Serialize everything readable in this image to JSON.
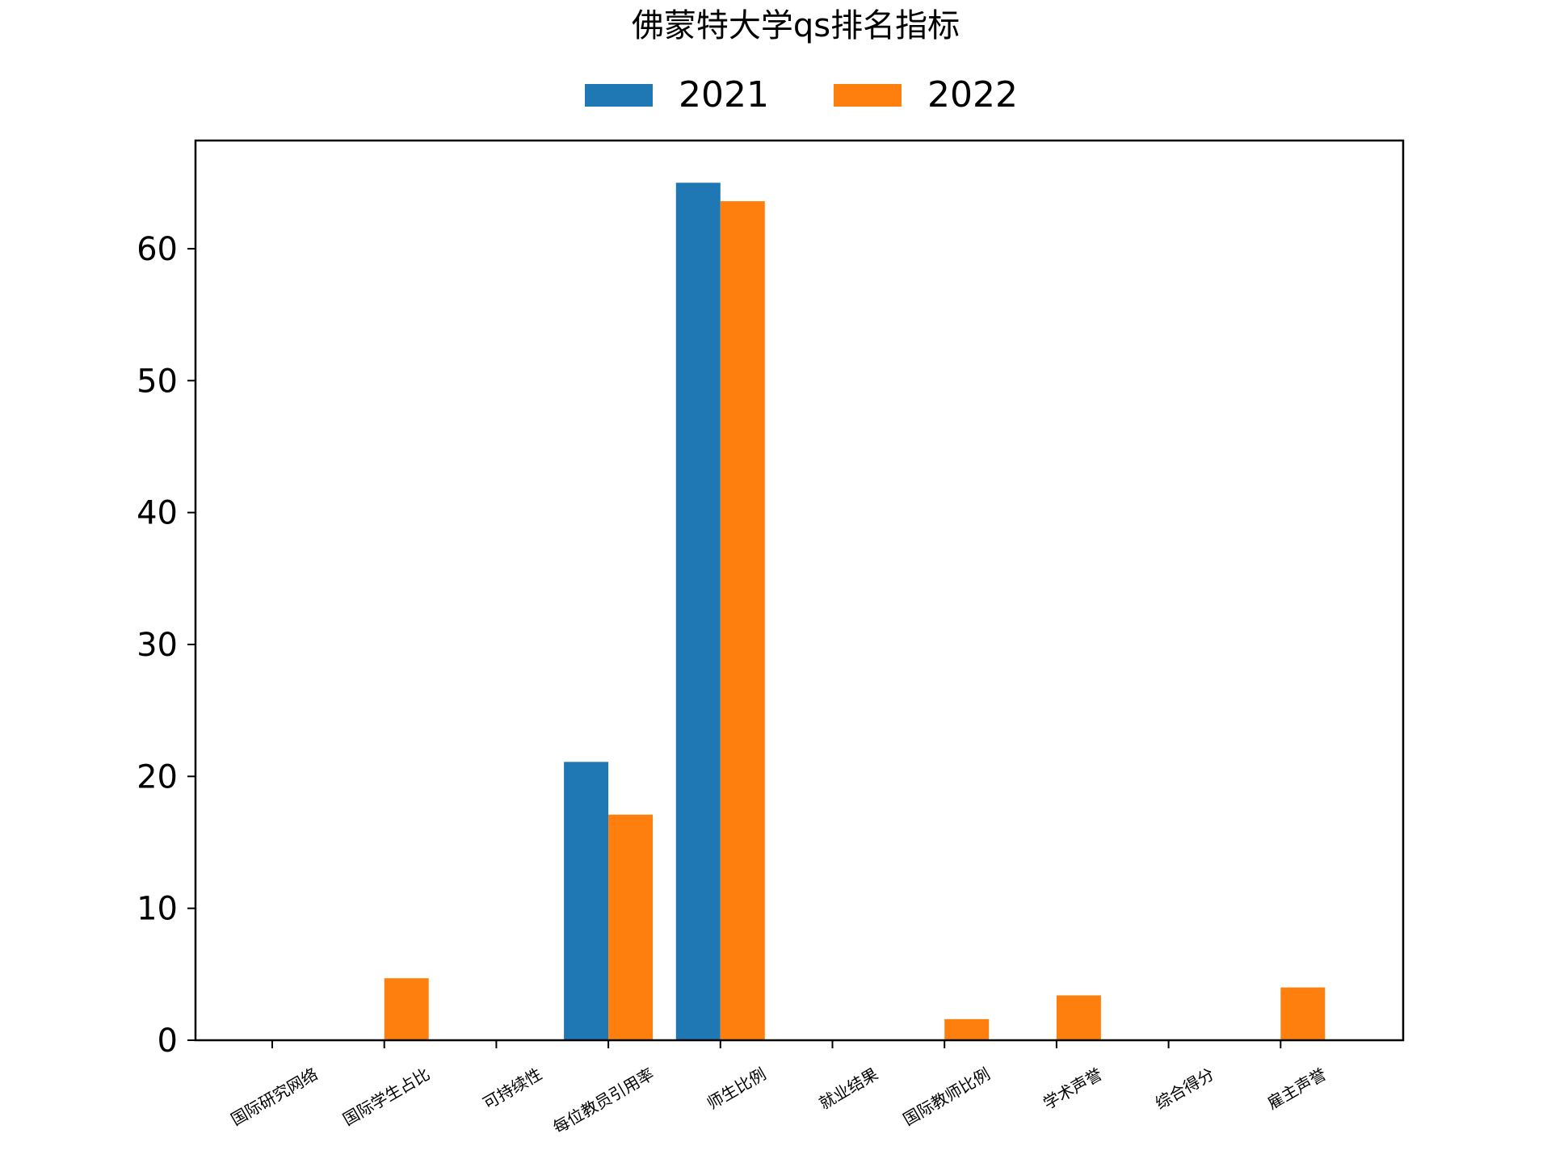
{
  "chart_data": {
    "type": "bar",
    "title": "佛蒙特大学qs排名指标",
    "categories": [
      "国际研究网络",
      "国际学生占比",
      "可持续性",
      "每位教员引用率",
      "师生比例",
      "就业结果",
      "国际教师比例",
      "学术声誉",
      "综合得分",
      "雇主声誉"
    ],
    "series": [
      {
        "name": "2021",
        "color": "#1f77b4",
        "values": [
          0,
          0,
          0,
          21.1,
          65.0,
          0,
          0,
          0,
          0,
          0
        ]
      },
      {
        "name": "2022",
        "color": "#ff7f0e",
        "values": [
          0,
          4.7,
          0,
          17.1,
          63.6,
          0,
          1.6,
          3.4,
          0,
          4.0
        ]
      }
    ],
    "ylim": [
      0,
      68.2
    ],
    "yticks": [
      "0",
      "10",
      "20",
      "30",
      "40",
      "50",
      "60"
    ],
    "legend": "top-center",
    "grid": false
  }
}
